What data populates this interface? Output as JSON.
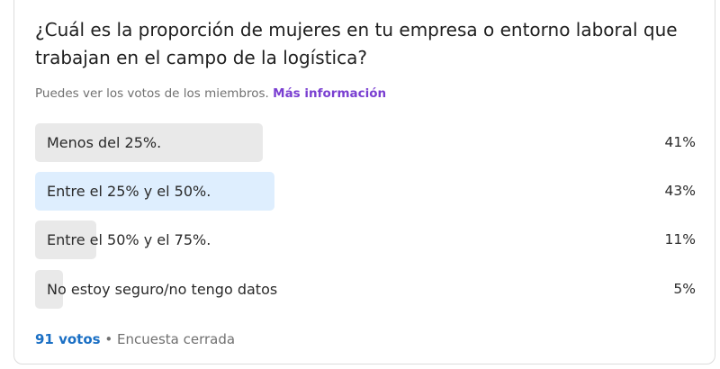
{
  "poll": {
    "question": "¿Cuál es la proporción de mujeres en tu empresa o entorno laboral que trabajan en el campo de la logística?",
    "visibility_note": "Puedes ver los votos de los miembros.",
    "more_info_link": "Más información",
    "options": [
      {
        "label": "Menos del 25%.",
        "percent_label": "41%",
        "percent": 41,
        "selected": false
      },
      {
        "label": "Entre el 25% y el 50%.",
        "percent_label": "43%",
        "percent": 43,
        "selected": true
      },
      {
        "label": "Entre el 50% y el 75%.",
        "percent_label": "11%",
        "percent": 11,
        "selected": false
      },
      {
        "label": "No estoy seguro/no tengo datos",
        "percent_label": "5%",
        "percent": 5,
        "selected": false
      }
    ],
    "votes": "91 votos",
    "separator": "•",
    "status": "Encuesta cerrada"
  },
  "colors": {
    "bar": "#e9e9e9",
    "selected_bar": "#deeefe",
    "link": "#7a3fd1",
    "votes": "#1a6fc4"
  }
}
